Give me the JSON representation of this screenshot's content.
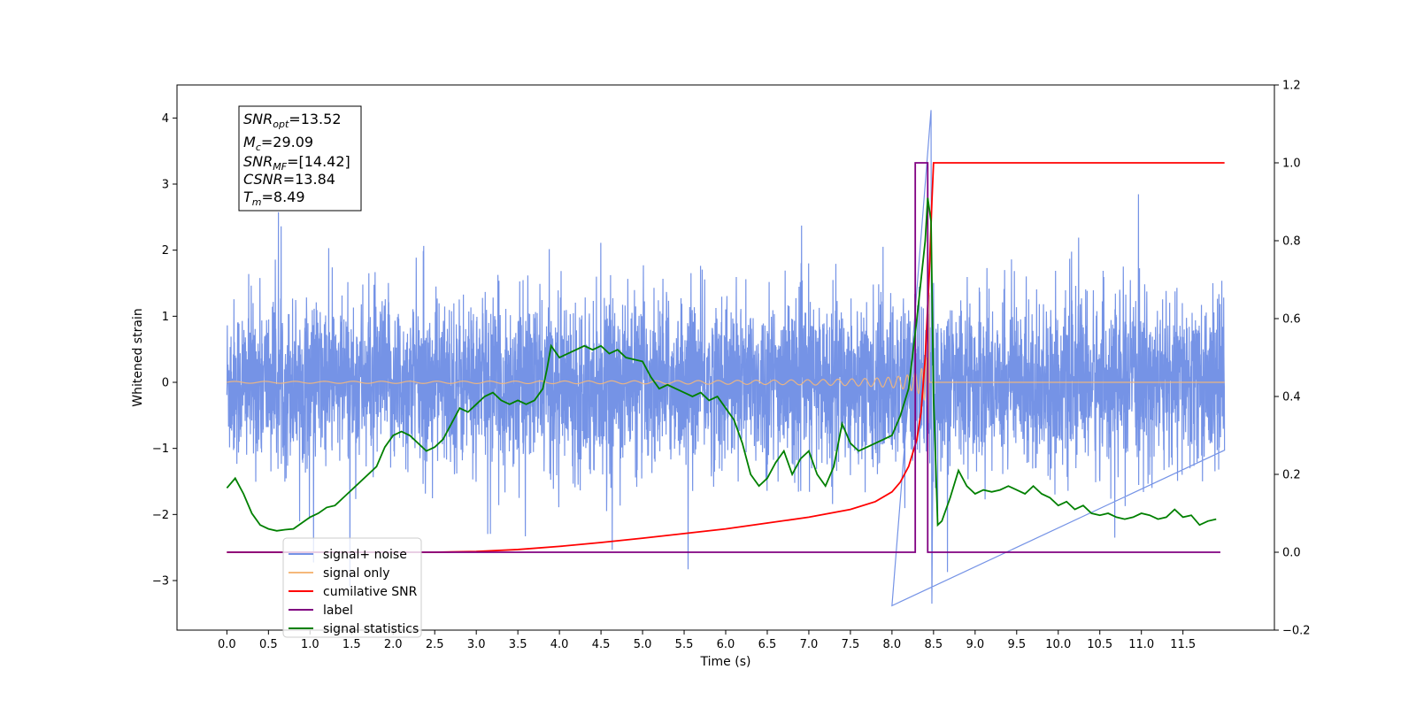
{
  "chart_data": {
    "type": "line",
    "title": "",
    "xlabel": "Time (s)",
    "ylabel": "Whitened strain",
    "xlim": [
      -0.6,
      12.6
    ],
    "ylim": [
      -3.75,
      4.5
    ],
    "y2lim": [
      -0.2,
      1.2
    ],
    "grid": false,
    "legend_position": "lower-left",
    "x_ticks": [
      "0.0",
      "0.5",
      "1.0",
      "1.5",
      "2.0",
      "2.5",
      "3.0",
      "3.5",
      "4.0",
      "4.5",
      "5.0",
      "5.5",
      "6.0",
      "6.5",
      "7.0",
      "7.5",
      "8.0",
      "8.5",
      "9.0",
      "9.5",
      "10.0",
      "10.5",
      "11.0",
      "11.5"
    ],
    "y_ticks": [
      "4",
      "3",
      "2",
      "1",
      "0",
      "−1",
      "−2",
      "−3"
    ],
    "y2_ticks": [
      "1.2",
      "1.0",
      "0.8",
      "0.6",
      "0.4",
      "0.2",
      "0.0",
      "−0.2"
    ],
    "info_box": [
      {
        "base": "SNR",
        "sub": "opt",
        "value": "=13.52"
      },
      {
        "base": "M",
        "sub": "c",
        "value": "=29.09"
      },
      {
        "base": "SNR",
        "sub": "MF",
        "value": "=[14.42]"
      },
      {
        "base": "CSNR",
        "sub": "",
        "value": "=13.84"
      },
      {
        "base": "T",
        "sub": "m",
        "value": "=8.49"
      }
    ],
    "series": [
      {
        "name": "signal+ noise",
        "color": "#7593e6",
        "axis": "left",
        "note": "white noise, envelope approx ±1.9, peaks 4.1 at t=8.47 and −3.4 at t=8.0",
        "x_range": [
          0.0,
          12.0
        ]
      },
      {
        "name": "signal only",
        "color": "#f5b87a",
        "axis": "left",
        "note": "chirp, amplitude grows from ~0 to ~1.8 near t=8.45",
        "x_range": [
          0.0,
          12.0
        ],
        "merger_time": 8.45
      },
      {
        "name": "cumilative SNR",
        "color": "#ff0000",
        "axis": "right",
        "x": [
          0.0,
          2.5,
          3.0,
          3.5,
          4.0,
          4.5,
          5.0,
          5.5,
          6.0,
          6.5,
          7.0,
          7.5,
          7.8,
          8.0,
          8.1,
          8.2,
          8.3,
          8.35,
          8.4,
          8.45,
          8.48,
          8.5,
          9.0,
          10.0,
          11.0,
          12.0
        ],
        "values": [
          0.0,
          0.0,
          0.002,
          0.007,
          0.015,
          0.025,
          0.036,
          0.048,
          0.06,
          0.075,
          0.09,
          0.11,
          0.13,
          0.155,
          0.18,
          0.22,
          0.29,
          0.36,
          0.5,
          0.72,
          0.9,
          1.0,
          1.0,
          1.0,
          1.0,
          1.0
        ]
      },
      {
        "name": "label",
        "color": "#800080",
        "axis": "right",
        "x": [
          0.0,
          8.28,
          8.28,
          8.43,
          8.43,
          11.95
        ],
        "values": [
          0.0,
          0.0,
          1.0,
          1.0,
          0.0,
          0.0
        ]
      },
      {
        "name": "signal statistics",
        "color": "#008000",
        "axis": "right",
        "x": [
          0.0,
          0.1,
          0.2,
          0.3,
          0.4,
          0.5,
          0.6,
          0.7,
          0.8,
          0.9,
          1.0,
          1.1,
          1.2,
          1.3,
          1.4,
          1.5,
          1.6,
          1.7,
          1.8,
          1.9,
          2.0,
          2.1,
          2.2,
          2.3,
          2.4,
          2.5,
          2.6,
          2.7,
          2.8,
          2.9,
          3.0,
          3.1,
          3.2,
          3.3,
          3.4,
          3.5,
          3.6,
          3.7,
          3.8,
          3.85,
          3.9,
          4.0,
          4.1,
          4.2,
          4.3,
          4.4,
          4.5,
          4.6,
          4.7,
          4.8,
          4.9,
          5.0,
          5.1,
          5.2,
          5.3,
          5.4,
          5.5,
          5.6,
          5.7,
          5.8,
          5.9,
          6.0,
          6.1,
          6.2,
          6.3,
          6.4,
          6.5,
          6.6,
          6.7,
          6.8,
          6.9,
          7.0,
          7.1,
          7.2,
          7.3,
          7.4,
          7.5,
          7.6,
          7.7,
          7.8,
          7.9,
          8.0,
          8.1,
          8.2,
          8.3,
          8.4,
          8.43,
          8.47,
          8.5,
          8.55,
          8.6,
          8.7,
          8.8,
          8.9,
          9.0,
          9.1,
          9.2,
          9.3,
          9.4,
          9.5,
          9.6,
          9.7,
          9.8,
          9.9,
          10.0,
          10.1,
          10.2,
          10.3,
          10.4,
          10.5,
          10.6,
          10.7,
          10.8,
          10.9,
          11.0,
          11.1,
          11.2,
          11.3,
          11.4,
          11.5,
          11.6,
          11.7,
          11.8,
          11.9
        ],
        "values": [
          0.165,
          0.19,
          0.15,
          0.1,
          0.07,
          0.06,
          0.055,
          0.058,
          0.06,
          0.075,
          0.09,
          0.1,
          0.115,
          0.12,
          0.14,
          0.16,
          0.18,
          0.2,
          0.22,
          0.27,
          0.3,
          0.31,
          0.3,
          0.28,
          0.26,
          0.27,
          0.29,
          0.33,
          0.37,
          0.36,
          0.38,
          0.4,
          0.41,
          0.39,
          0.38,
          0.39,
          0.38,
          0.39,
          0.42,
          0.47,
          0.53,
          0.5,
          0.51,
          0.52,
          0.53,
          0.52,
          0.53,
          0.51,
          0.52,
          0.5,
          0.495,
          0.49,
          0.45,
          0.42,
          0.43,
          0.42,
          0.41,
          0.4,
          0.41,
          0.39,
          0.4,
          0.37,
          0.34,
          0.28,
          0.2,
          0.17,
          0.19,
          0.23,
          0.26,
          0.2,
          0.24,
          0.26,
          0.2,
          0.17,
          0.22,
          0.33,
          0.28,
          0.26,
          0.27,
          0.28,
          0.29,
          0.3,
          0.35,
          0.42,
          0.6,
          0.8,
          0.91,
          0.85,
          0.4,
          0.07,
          0.08,
          0.14,
          0.21,
          0.17,
          0.15,
          0.16,
          0.155,
          0.16,
          0.17,
          0.16,
          0.15,
          0.17,
          0.15,
          0.14,
          0.12,
          0.13,
          0.11,
          0.12,
          0.1,
          0.095,
          0.1,
          0.09,
          0.085,
          0.09,
          0.1,
          0.095,
          0.085,
          0.09,
          0.11,
          0.09,
          0.095,
          0.07,
          0.08,
          0.085
        ]
      }
    ]
  }
}
